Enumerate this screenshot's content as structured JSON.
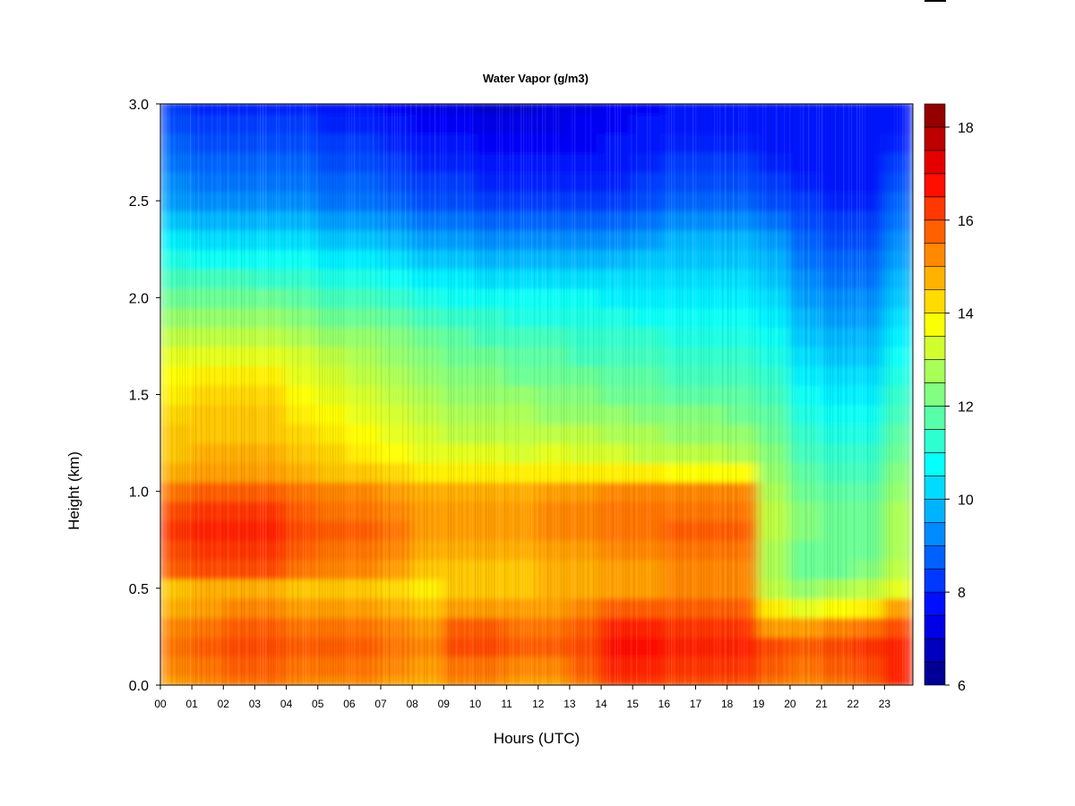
{
  "chart_data": {
    "type": "heatmap",
    "title": "Water Vapor (g/m3)",
    "xlabel": "Hours (UTC)",
    "ylabel": "Height (km)",
    "x_tick_labels": [
      "00",
      "01",
      "02",
      "03",
      "04",
      "05",
      "06",
      "07",
      "08",
      "09",
      "10",
      "11",
      "12",
      "13",
      "14",
      "15",
      "16",
      "17",
      "18",
      "19",
      "20",
      "21",
      "22",
      "23"
    ],
    "x_range": [
      0,
      23.9
    ],
    "y_ticks": [
      0.0,
      0.5,
      1.0,
      1.5,
      2.0,
      2.5,
      3.0
    ],
    "y_tick_labels": [
      "0.0",
      "0.5",
      "1.0",
      "1.5",
      "2.0",
      "2.5",
      "3.0"
    ],
    "y_range": [
      0,
      3.0
    ],
    "colorbar": {
      "range": [
        6,
        18.5
      ],
      "levels_step": 0.5,
      "ticks": [
        6,
        8,
        10,
        12,
        14,
        16,
        18
      ],
      "tick_labels": [
        "6",
        "8",
        "10",
        "12",
        "14",
        "16",
        "18"
      ],
      "colormap": "jet"
    },
    "heights_km": [
      0.0,
      0.1,
      0.2,
      0.3,
      0.4,
      0.5,
      0.6,
      0.7,
      0.8,
      0.9,
      1.0,
      1.1,
      1.2,
      1.3,
      1.4,
      1.5,
      1.6,
      1.7,
      1.8,
      1.9,
      2.0,
      2.1,
      2.2,
      2.3,
      2.4,
      2.5,
      2.6,
      2.7,
      2.8,
      2.9,
      3.0
    ],
    "hours_utc": [
      0,
      1,
      2,
      3,
      4,
      5,
      6,
      7,
      8,
      9,
      10,
      11,
      12,
      13,
      14,
      15,
      16,
      17,
      18,
      19,
      20,
      21,
      22,
      23
    ],
    "values_g_m3": [
      [
        15.0,
        15.3,
        15.5,
        15.6,
        15.3,
        15.2,
        15.3,
        15.0,
        14.8,
        15.3,
        15.3,
        15.0,
        15.0,
        15.5,
        16.3,
        16.3,
        16.0,
        16.0,
        16.0,
        15.5,
        15.3,
        15.5,
        15.8,
        16.5
      ],
      [
        15.3,
        15.5,
        15.8,
        15.8,
        15.5,
        15.5,
        15.5,
        15.3,
        15.0,
        15.5,
        15.5,
        15.3,
        15.3,
        15.8,
        16.5,
        16.5,
        16.3,
        16.3,
        16.3,
        15.8,
        15.5,
        15.8,
        16.0,
        16.5
      ],
      [
        15.5,
        15.8,
        16.0,
        16.0,
        15.8,
        15.8,
        15.8,
        15.5,
        15.3,
        16.0,
        16.0,
        15.8,
        15.8,
        16.0,
        16.8,
        16.8,
        16.5,
        16.5,
        16.5,
        16.0,
        15.8,
        16.0,
        16.3,
        16.5
      ],
      [
        15.3,
        15.5,
        15.8,
        15.8,
        15.5,
        15.5,
        15.5,
        15.3,
        15.0,
        15.8,
        15.8,
        15.5,
        15.5,
        15.8,
        16.5,
        16.5,
        16.3,
        16.3,
        16.3,
        15.0,
        15.0,
        15.3,
        15.5,
        16.0
      ],
      [
        14.8,
        15.0,
        15.3,
        15.3,
        15.0,
        15.0,
        15.0,
        14.8,
        14.5,
        15.0,
        15.0,
        15.0,
        15.0,
        15.3,
        15.8,
        15.8,
        15.8,
        15.8,
        15.8,
        14.0,
        13.5,
        13.8,
        14.0,
        15.0
      ],
      [
        14.5,
        14.8,
        14.8,
        14.8,
        14.5,
        14.5,
        14.5,
        14.3,
        14.0,
        14.5,
        14.5,
        14.5,
        14.8,
        14.8,
        15.0,
        15.0,
        15.3,
        15.3,
        15.3,
        13.0,
        12.5,
        12.8,
        13.0,
        13.5
      ],
      [
        15.8,
        16.0,
        16.0,
        16.0,
        15.5,
        15.3,
        15.3,
        15.0,
        14.5,
        14.5,
        14.5,
        14.5,
        14.8,
        14.8,
        15.0,
        15.0,
        15.3,
        15.3,
        15.3,
        12.8,
        12.0,
        12.0,
        12.3,
        13.0
      ],
      [
        16.0,
        16.3,
        16.3,
        16.3,
        15.8,
        15.5,
        15.5,
        15.3,
        14.8,
        14.8,
        14.8,
        14.8,
        15.0,
        15.0,
        15.3,
        15.3,
        15.5,
        15.5,
        15.5,
        12.8,
        12.0,
        12.0,
        12.0,
        12.8
      ],
      [
        16.3,
        16.5,
        16.5,
        16.5,
        16.0,
        15.8,
        15.8,
        15.5,
        15.0,
        15.0,
        15.0,
        15.0,
        15.3,
        15.3,
        15.5,
        15.5,
        15.8,
        15.8,
        15.8,
        13.0,
        12.3,
        12.0,
        12.0,
        12.8
      ],
      [
        16.0,
        16.3,
        16.3,
        16.3,
        15.8,
        15.5,
        15.5,
        15.3,
        15.0,
        15.0,
        15.0,
        15.0,
        15.3,
        15.3,
        15.5,
        15.5,
        15.5,
        15.5,
        15.5,
        13.0,
        12.3,
        12.0,
        12.0,
        12.8
      ],
      [
        15.5,
        15.8,
        15.8,
        15.8,
        15.5,
        15.3,
        15.3,
        15.0,
        14.8,
        14.8,
        14.8,
        14.8,
        15.0,
        15.0,
        15.3,
        15.3,
        15.3,
        15.3,
        15.3,
        12.8,
        12.0,
        11.8,
        11.8,
        12.5
      ],
      [
        14.8,
        15.0,
        15.0,
        15.0,
        14.8,
        14.5,
        14.5,
        14.3,
        14.0,
        14.0,
        14.0,
        14.0,
        14.0,
        14.0,
        14.0,
        14.0,
        13.8,
        13.8,
        13.8,
        12.5,
        11.8,
        11.5,
        11.5,
        12.3
      ],
      [
        14.5,
        14.8,
        14.8,
        14.8,
        14.5,
        14.3,
        14.0,
        13.8,
        13.5,
        13.5,
        13.5,
        13.3,
        13.5,
        13.3,
        13.3,
        13.0,
        13.0,
        13.0,
        12.8,
        12.3,
        11.5,
        11.3,
        11.3,
        12.0
      ],
      [
        14.5,
        14.5,
        14.5,
        14.5,
        14.3,
        14.0,
        13.8,
        13.5,
        13.3,
        13.0,
        13.0,
        13.0,
        13.0,
        13.0,
        12.8,
        12.8,
        12.5,
        12.5,
        12.5,
        12.0,
        11.3,
        11.0,
        11.0,
        11.8
      ],
      [
        14.3,
        14.5,
        14.5,
        14.5,
        14.0,
        13.8,
        13.5,
        13.3,
        13.0,
        12.8,
        12.8,
        12.8,
        12.5,
        12.5,
        12.5,
        12.3,
        12.3,
        12.3,
        12.0,
        11.8,
        11.0,
        10.8,
        10.8,
        11.5
      ],
      [
        14.0,
        14.3,
        14.3,
        14.3,
        13.8,
        13.5,
        13.3,
        13.0,
        12.8,
        12.5,
        12.5,
        12.5,
        12.3,
        12.3,
        12.0,
        12.0,
        11.8,
        11.8,
        11.8,
        11.5,
        10.8,
        10.5,
        10.5,
        11.3
      ],
      [
        13.8,
        14.0,
        14.0,
        14.0,
        13.5,
        13.3,
        13.0,
        12.8,
        12.5,
        12.3,
        12.3,
        12.0,
        12.0,
        12.0,
        11.8,
        11.8,
        11.5,
        11.5,
        11.5,
        11.3,
        10.5,
        10.3,
        10.3,
        11.0
      ],
      [
        13.5,
        13.5,
        13.5,
        13.5,
        13.3,
        13.0,
        12.8,
        12.5,
        12.3,
        12.0,
        12.0,
        11.8,
        11.8,
        11.5,
        11.5,
        11.5,
        11.3,
        11.3,
        11.3,
        11.0,
        10.3,
        10.0,
        10.0,
        10.8
      ],
      [
        13.0,
        13.0,
        13.0,
        13.0,
        12.8,
        12.5,
        12.5,
        12.3,
        12.0,
        11.8,
        11.5,
        11.5,
        11.5,
        11.3,
        11.3,
        11.3,
        11.0,
        11.0,
        11.0,
        10.8,
        10.0,
        9.8,
        9.8,
        10.5
      ],
      [
        12.5,
        12.5,
        12.5,
        12.5,
        12.3,
        12.0,
        12.0,
        11.8,
        11.5,
        11.3,
        11.3,
        11.0,
        11.0,
        11.0,
        11.0,
        10.8,
        10.8,
        10.8,
        10.8,
        10.5,
        9.8,
        9.5,
        9.5,
        10.3
      ],
      [
        12.0,
        12.0,
        12.0,
        12.0,
        11.8,
        11.5,
        11.5,
        11.3,
        11.0,
        10.8,
        10.8,
        10.8,
        10.8,
        10.8,
        10.5,
        10.5,
        10.5,
        10.5,
        10.5,
        10.3,
        9.5,
        9.3,
        9.3,
        10.0
      ],
      [
        11.5,
        11.5,
        11.5,
        11.3,
        11.3,
        11.0,
        11.0,
        10.8,
        10.5,
        10.5,
        10.3,
        10.3,
        10.3,
        10.3,
        10.3,
        10.3,
        10.3,
        10.3,
        10.3,
        10.0,
        9.3,
        9.0,
        9.0,
        9.8
      ],
      [
        11.0,
        10.8,
        10.8,
        10.8,
        10.8,
        10.5,
        10.5,
        10.3,
        10.0,
        10.0,
        9.8,
        9.8,
        9.8,
        9.8,
        9.8,
        10.0,
        10.0,
        10.0,
        10.0,
        9.8,
        9.0,
        8.8,
        8.8,
        9.5
      ],
      [
        10.5,
        10.3,
        10.3,
        10.3,
        10.3,
        10.0,
        10.0,
        9.8,
        9.5,
        9.5,
        9.3,
        9.3,
        9.3,
        9.3,
        9.3,
        9.5,
        9.8,
        9.8,
        9.8,
        9.5,
        8.8,
        8.5,
        8.5,
        9.3
      ],
      [
        10.0,
        9.8,
        9.8,
        9.8,
        9.8,
        9.5,
        9.5,
        9.3,
        9.0,
        9.0,
        8.8,
        8.8,
        8.8,
        8.8,
        8.8,
        9.0,
        9.3,
        9.3,
        9.3,
        9.0,
        8.5,
        8.3,
        8.3,
        9.0
      ],
      [
        9.5,
        9.3,
        9.3,
        9.3,
        9.3,
        9.0,
        9.0,
        8.8,
        8.5,
        8.5,
        8.3,
        8.3,
        8.3,
        8.3,
        8.3,
        8.5,
        8.8,
        8.8,
        8.8,
        8.5,
        8.3,
        8.0,
        8.0,
        8.8
      ],
      [
        9.3,
        9.0,
        9.0,
        9.0,
        9.0,
        8.8,
        8.8,
        8.5,
        8.3,
        8.3,
        8.0,
        8.0,
        8.0,
        8.0,
        8.0,
        8.3,
        8.5,
        8.5,
        8.5,
        8.3,
        8.0,
        7.8,
        7.8,
        8.5
      ],
      [
        9.0,
        8.8,
        8.8,
        8.8,
        8.8,
        8.5,
        8.5,
        8.3,
        8.0,
        8.0,
        7.8,
        7.8,
        7.8,
        7.8,
        7.8,
        8.0,
        8.3,
        8.3,
        8.3,
        8.0,
        7.8,
        7.8,
        7.8,
        8.3
      ],
      [
        8.8,
        8.5,
        8.5,
        8.5,
        8.5,
        8.3,
        8.3,
        8.0,
        7.8,
        7.8,
        7.5,
        7.5,
        7.5,
        7.5,
        7.8,
        7.8,
        8.0,
        8.0,
        8.0,
        7.8,
        7.8,
        7.8,
        7.8,
        8.0
      ],
      [
        8.5,
        8.3,
        8.3,
        8.3,
        8.3,
        8.0,
        8.0,
        7.8,
        7.5,
        7.5,
        7.3,
        7.3,
        7.3,
        7.5,
        7.5,
        7.8,
        7.8,
        7.8,
        7.8,
        7.8,
        7.8,
        7.8,
        7.8,
        7.8
      ],
      [
        8.3,
        8.0,
        8.0,
        8.0,
        8.0,
        7.8,
        7.8,
        7.5,
        7.3,
        7.3,
        7.0,
        7.0,
        7.3,
        7.3,
        7.5,
        7.5,
        7.8,
        7.8,
        7.8,
        7.8,
        7.8,
        7.8,
        7.8,
        7.8
      ]
    ]
  }
}
